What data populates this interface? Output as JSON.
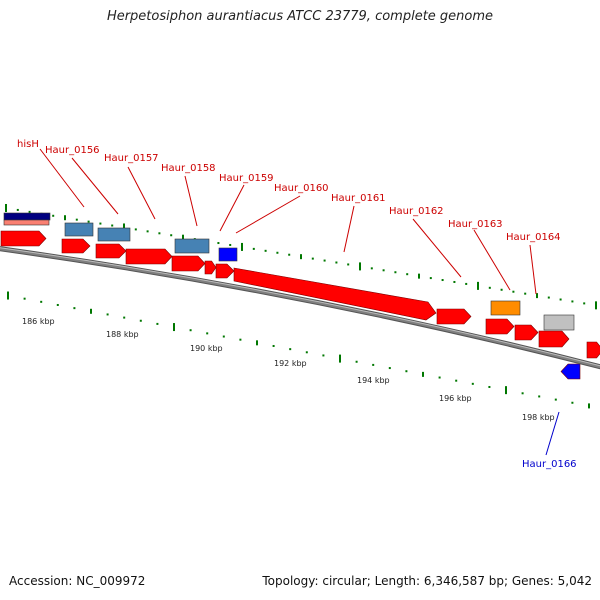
{
  "title": "Herpetosiphon aurantiacus ATCC 23779, complete genome",
  "footer": {
    "accession": "Accession: NC_009972",
    "topology": "Topology: circular; Length: 6,346,587 bp; Genes: 5,042"
  },
  "colors": {
    "cds": "#ff0000",
    "gene_label": "#cc0000",
    "minus_label": "#0000cc",
    "backbone": "#808080",
    "ticks": "#007700",
    "steelblue": "#4682b4",
    "navy": "#000080",
    "blue": "#0000ff",
    "orange": "#ff8c00",
    "grey": "#c0c0c0",
    "salmon": "#fa8072"
  },
  "ruler": [
    {
      "label": "186 kbp"
    },
    {
      "label": "188 kbp"
    },
    {
      "label": "190 kbp"
    },
    {
      "label": "192 kbp"
    },
    {
      "label": "194 kbp"
    },
    {
      "label": "196 kbp"
    },
    {
      "label": "198 kbp"
    }
  ],
  "gene_labels": [
    {
      "text": "hisH"
    },
    {
      "text": "Haur_0156"
    },
    {
      "text": "Haur_0157"
    },
    {
      "text": "Haur_0158"
    },
    {
      "text": "Haur_0159"
    },
    {
      "text": "Haur_0160"
    },
    {
      "text": "Haur_0161"
    },
    {
      "text": "Haur_0162"
    },
    {
      "text": "Haur_0163"
    },
    {
      "text": "Haur_0164"
    },
    {
      "text": "Haur_0166"
    }
  ]
}
